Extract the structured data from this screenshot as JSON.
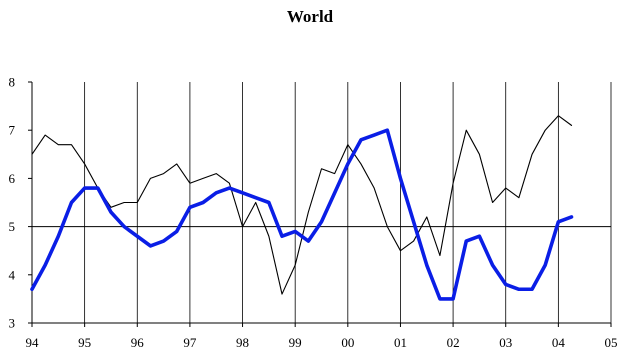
{
  "chart_data": {
    "type": "line",
    "title": "World",
    "xlabel": "",
    "ylabel": "",
    "xlim": [
      1994,
      2005
    ],
    "ylim": [
      3,
      8
    ],
    "x_ticks": [
      "94",
      "95",
      "96",
      "97",
      "98",
      "99",
      "00",
      "01",
      "02",
      "03",
      "04",
      "05"
    ],
    "y_ticks": [
      "3",
      "4",
      "5",
      "6",
      "7",
      "8"
    ],
    "reference_line": 5,
    "vertical_gridlines": true,
    "legend": "none",
    "series": [
      {
        "color": "#000000",
        "style": "thin",
        "x": [
          1994.0,
          1994.25,
          1994.5,
          1994.75,
          1995.0,
          1995.25,
          1995.5,
          1995.75,
          1996.0,
          1996.25,
          1996.5,
          1996.75,
          1997.0,
          1997.25,
          1997.5,
          1997.75,
          1998.0,
          1998.25,
          1998.5,
          1998.75,
          1999.0,
          1999.25,
          1999.5,
          1999.75,
          2000.0,
          2000.25,
          2000.5,
          2000.75,
          2001.0,
          2001.25,
          2001.5,
          2001.75,
          2002.0,
          2002.25,
          2002.5,
          2002.75,
          2003.0,
          2003.25,
          2003.5,
          2003.75,
          2004.0,
          2004.25
        ],
        "values": [
          6.5,
          6.9,
          6.7,
          6.7,
          6.3,
          5.8,
          5.4,
          5.5,
          5.5,
          6.0,
          6.1,
          6.3,
          5.9,
          6.0,
          6.1,
          5.9,
          5.0,
          5.5,
          4.8,
          3.6,
          4.2,
          5.3,
          6.2,
          6.1,
          6.7,
          6.3,
          5.8,
          5.0,
          4.5,
          4.7,
          5.2,
          4.4,
          5.9,
          7.0,
          6.5,
          5.5,
          5.8,
          5.6,
          6.5,
          7.0,
          7.3,
          7.1
        ]
      },
      {
        "color": "#0a1ee6",
        "style": "thick",
        "x": [
          1994.0,
          1994.25,
          1994.5,
          1994.75,
          1995.0,
          1995.25,
          1995.5,
          1995.75,
          1996.0,
          1996.25,
          1996.5,
          1996.75,
          1997.0,
          1997.25,
          1997.5,
          1997.75,
          1998.0,
          1998.25,
          1998.5,
          1998.75,
          1999.0,
          1999.25,
          1999.5,
          1999.75,
          2000.0,
          2000.25,
          2000.5,
          2000.75,
          2001.0,
          2001.25,
          2001.5,
          2001.75,
          2002.0,
          2002.25,
          2002.5,
          2002.75,
          2003.0,
          2003.25,
          2003.5,
          2003.75,
          2004.0,
          2004.25
        ],
        "values": [
          3.7,
          4.2,
          4.8,
          5.5,
          5.8,
          5.8,
          5.3,
          5.0,
          4.8,
          4.6,
          4.7,
          4.9,
          5.4,
          5.5,
          5.7,
          5.8,
          5.7,
          5.6,
          5.5,
          4.8,
          4.9,
          4.7,
          5.1,
          5.7,
          6.3,
          6.8,
          6.9,
          7.0,
          6.0,
          5.1,
          4.2,
          3.5,
          3.5,
          4.7,
          4.8,
          4.2,
          3.8,
          3.7,
          3.7,
          4.2,
          5.1,
          5.2
        ]
      }
    ]
  }
}
